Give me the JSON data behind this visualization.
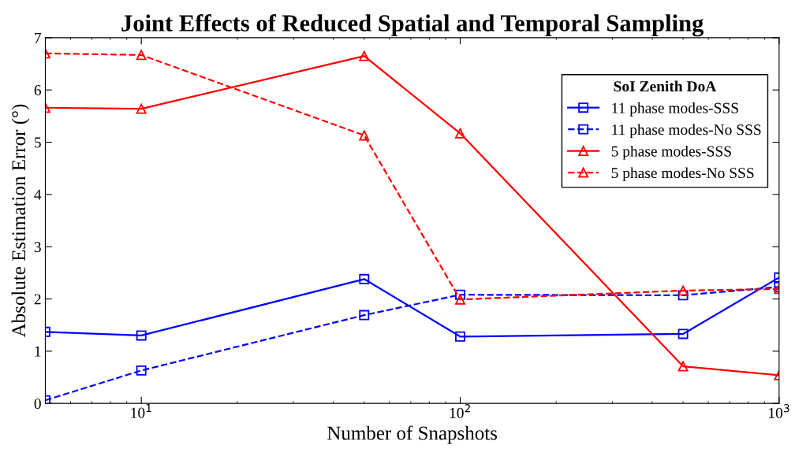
{
  "chart_data": {
    "type": "line",
    "title": "Joint Effects of Reduced Spatial and Temporal Sampling",
    "xlabel": "Number of Snapshots",
    "ylabel": "Absolute Estimation Error (°)",
    "legend_title": "SoI Zenith DoA",
    "x": [
      5,
      10,
      50,
      100,
      500,
      1000
    ],
    "series": [
      {
        "name": "11 phase modes-SSS",
        "color": "#0000ff",
        "marker": "square",
        "line_style": "solid",
        "values": [
          1.37,
          1.3,
          2.38,
          1.28,
          1.33,
          2.41
        ]
      },
      {
        "name": "11 phase modes-No SSS",
        "color": "#0000ff",
        "marker": "square",
        "line_style": "dashed",
        "values": [
          0.06,
          0.63,
          1.69,
          2.08,
          2.07,
          2.23
        ]
      },
      {
        "name": "5 phase modes-SSS",
        "color": "#ff0000",
        "marker": "triangle",
        "line_style": "solid",
        "values": [
          5.66,
          5.64,
          6.65,
          5.17,
          0.71,
          0.54
        ]
      },
      {
        "name": "5 phase modes-No SSS",
        "color": "#ff0000",
        "marker": "triangle",
        "line_style": "dashed",
        "values": [
          6.7,
          6.67,
          5.13,
          1.99,
          2.16,
          2.19
        ]
      }
    ],
    "log": "x",
    "xlim": [
      5,
      1000
    ],
    "xticks": [
      {
        "value": 10,
        "label": "10$^{1}$"
      },
      {
        "value": 100,
        "label": "10$^{2}$"
      },
      {
        "value": 1000,
        "label": "10$^{3}$"
      }
    ],
    "ylim": [
      0,
      7
    ],
    "yticks": [
      0,
      1,
      2,
      3,
      4,
      5,
      6,
      7
    ],
    "grid": false,
    "legend": "top right"
  }
}
